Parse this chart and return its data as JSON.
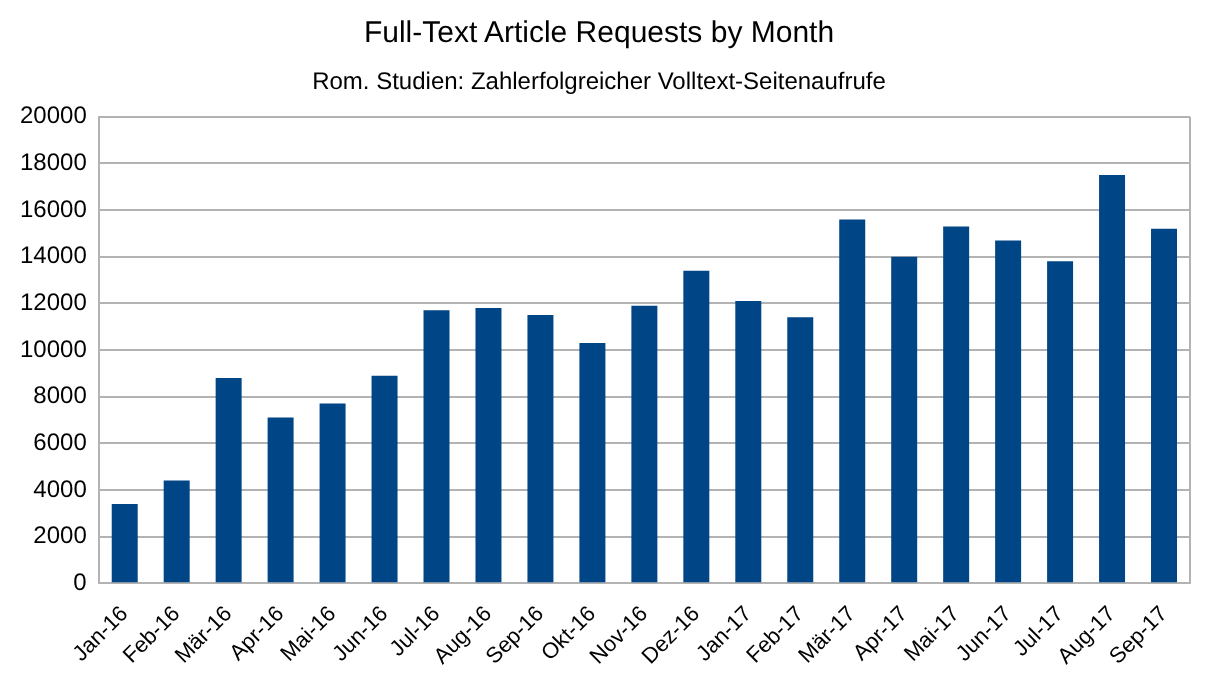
{
  "chart_data": {
    "type": "bar",
    "title": "Full-Text Article Requests by Month",
    "subtitle": "Rom. Studien: Zahlerfolgreicher Volltext-Seitenaufrufe",
    "categories": [
      "Jan-16",
      "Feb-16",
      "Mär-16",
      "Apr-16",
      "Mai-16",
      "Jun-16",
      "Jul-16",
      "Aug-16",
      "Sep-16",
      "Okt-16",
      "Nov-16",
      "Dez-16",
      "Jan-17",
      "Feb-17",
      "Mär-17",
      "Apr-17",
      "Mai-17",
      "Jun-17",
      "Jul-17",
      "Aug-17",
      "Sep-17"
    ],
    "values": [
      3400,
      4400,
      8800,
      7100,
      7700,
      8900,
      11700,
      11800,
      11500,
      10300,
      11900,
      13400,
      12100,
      11400,
      15600,
      14000,
      15300,
      14700,
      13800,
      17500,
      15200
    ],
    "color": "#004586",
    "ylim": [
      0,
      20000
    ],
    "yticks": [
      0,
      2000,
      4000,
      6000,
      8000,
      10000,
      12000,
      14000,
      16000,
      18000,
      20000
    ],
    "grid": "y",
    "legend": false
  }
}
